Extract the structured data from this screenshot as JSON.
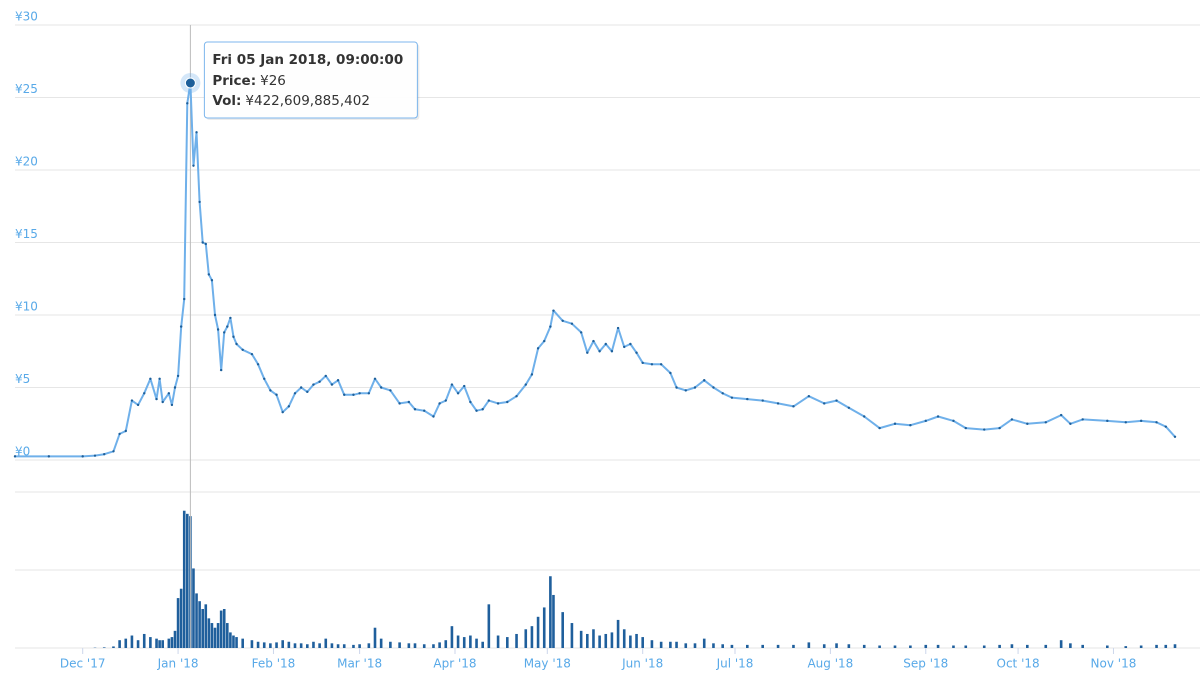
{
  "chart_data": {
    "type": "stock",
    "x": [
      "2017-11-09",
      "2017-11-20",
      "2017-12-01",
      "2017-12-05",
      "2017-12-08",
      "2017-12-11",
      "2017-12-13",
      "2017-12-15",
      "2017-12-17",
      "2017-12-19",
      "2017-12-21",
      "2017-12-23",
      "2017-12-25",
      "2017-12-26",
      "2017-12-27",
      "2017-12-29",
      "2017-12-30",
      "2017-12-31",
      "2018-01-01",
      "2018-01-02",
      "2018-01-03",
      "2018-01-04",
      "2018-01-05",
      "2018-01-06",
      "2018-01-07",
      "2018-01-08",
      "2018-01-09",
      "2018-01-10",
      "2018-01-11",
      "2018-01-12",
      "2018-01-13",
      "2018-01-14",
      "2018-01-15",
      "2018-01-16",
      "2018-01-17",
      "2018-01-18",
      "2018-01-19",
      "2018-01-20",
      "2018-01-22",
      "2018-01-25",
      "2018-01-27",
      "2018-01-29",
      "2018-01-31",
      "2018-02-02",
      "2018-02-04",
      "2018-02-06",
      "2018-02-08",
      "2018-02-10",
      "2018-02-12",
      "2018-02-14",
      "2018-02-16",
      "2018-02-18",
      "2018-02-20",
      "2018-02-22",
      "2018-02-24",
      "2018-02-27",
      "2018-03-01",
      "2018-03-04",
      "2018-03-06",
      "2018-03-08",
      "2018-03-11",
      "2018-03-14",
      "2018-03-17",
      "2018-03-19",
      "2018-03-22",
      "2018-03-25",
      "2018-03-27",
      "2018-03-29",
      "2018-03-31",
      "2018-04-02",
      "2018-04-04",
      "2018-04-06",
      "2018-04-08",
      "2018-04-10",
      "2018-04-12",
      "2018-04-15",
      "2018-04-18",
      "2018-04-21",
      "2018-04-24",
      "2018-04-26",
      "2018-04-28",
      "2018-04-30",
      "2018-05-02",
      "2018-05-03",
      "2018-05-06",
      "2018-05-09",
      "2018-05-12",
      "2018-05-14",
      "2018-05-16",
      "2018-05-18",
      "2018-05-20",
      "2018-05-22",
      "2018-05-24",
      "2018-05-26",
      "2018-05-28",
      "2018-05-30",
      "2018-06-01",
      "2018-06-04",
      "2018-06-07",
      "2018-06-10",
      "2018-06-12",
      "2018-06-15",
      "2018-06-18",
      "2018-06-21",
      "2018-06-24",
      "2018-06-27",
      "2018-06-30",
      "2018-07-05",
      "2018-07-10",
      "2018-07-15",
      "2018-07-20",
      "2018-07-25",
      "2018-07-30",
      "2018-08-03",
      "2018-08-07",
      "2018-08-12",
      "2018-08-17",
      "2018-08-22",
      "2018-08-27",
      "2018-09-01",
      "2018-09-05",
      "2018-09-10",
      "2018-09-14",
      "2018-09-20",
      "2018-09-25",
      "2018-09-29",
      "2018-10-04",
      "2018-10-10",
      "2018-10-15",
      "2018-10-18",
      "2018-10-22",
      "2018-10-30",
      "2018-11-05",
      "2018-11-10",
      "2018-11-15",
      "2018-11-18",
      "2018-11-21"
    ],
    "price": {
      "color": "#6fb0ea",
      "marker_color": "#1d5f9a",
      "values": [
        0.25,
        0.25,
        0.25,
        0.3,
        0.4,
        0.6,
        1.8,
        2.0,
        4.1,
        3.8,
        4.6,
        5.6,
        4.2,
        5.6,
        4.0,
        4.6,
        3.8,
        5.0,
        5.8,
        9.2,
        11.1,
        24.6,
        26.0,
        20.3,
        22.6,
        17.8,
        15.0,
        14.9,
        12.8,
        12.4,
        10.0,
        9.0,
        6.2,
        8.8,
        9.2,
        9.8,
        8.5,
        8.0,
        7.6,
        7.3,
        6.6,
        5.6,
        4.8,
        4.5,
        3.3,
        3.7,
        4.6,
        5.0,
        4.7,
        5.2,
        5.4,
        5.8,
        5.2,
        5.5,
        4.5,
        4.5,
        4.6,
        4.6,
        5.6,
        5.0,
        4.8,
        3.9,
        4.0,
        3.5,
        3.4,
        3.0,
        3.9,
        4.1,
        5.2,
        4.6,
        5.1,
        4.0,
        3.4,
        3.5,
        4.1,
        3.9,
        4.0,
        4.4,
        5.2,
        5.9,
        7.7,
        8.2,
        9.2,
        10.3,
        9.6,
        9.4,
        8.8,
        7.4,
        8.2,
        7.5,
        8.0,
        7.5,
        9.1,
        7.8,
        8.0,
        7.4,
        6.7,
        6.6,
        6.6,
        6.0,
        5.0,
        4.8,
        5.0,
        5.5,
        5.0,
        4.6,
        4.3,
        4.2,
        4.1,
        3.9,
        3.7,
        4.4,
        3.9,
        4.1,
        3.6,
        3.0,
        2.2,
        2.5,
        2.4,
        2.7,
        3.0,
        2.7,
        2.2,
        2.1,
        2.2,
        2.8,
        2.5,
        2.6,
        3.1,
        2.5,
        2.8,
        2.7,
        2.6,
        2.7,
        2.6,
        2.3,
        1.6
      ]
    },
    "volume": {
      "color": "#1f5f9c",
      "values": [
        0,
        0,
        0,
        1000000000.0,
        2000000000.0,
        5000000000.0,
        25000000000.0,
        30000000000.0,
        40000000000.0,
        25000000000.0,
        45000000000.0,
        35000000000.0,
        30000000000.0,
        25000000000.0,
        25000000000.0,
        30000000000.0,
        35000000000.0,
        55000000000.0,
        160000000000.0,
        190000000000.0,
        440000000000.0,
        430000000000.0,
        422609885402,
        255000000000.0,
        175000000000.0,
        150000000000.0,
        125000000000.0,
        140000000000.0,
        95000000000.0,
        80000000000.0,
        65000000000.0,
        80000000000.0,
        120000000000.0,
        125000000000.0,
        80000000000.0,
        50000000000.0,
        40000000000.0,
        35000000000.0,
        30000000000.0,
        25000000000.0,
        20000000000.0,
        18000000000.0,
        15000000000.0,
        18000000000.0,
        25000000000.0,
        20000000000.0,
        15000000000.0,
        15000000000.0,
        12000000000.0,
        20000000000.0,
        15000000000.0,
        30000000000.0,
        15000000000.0,
        12000000000.0,
        12000000000.0,
        10000000000.0,
        12000000000.0,
        15000000000.0,
        65000000000.0,
        30000000000.0,
        20000000000.0,
        18000000000.0,
        15000000000.0,
        15000000000.0,
        12000000000.0,
        12000000000.0,
        18000000000.0,
        25000000000.0,
        70000000000.0,
        40000000000.0,
        35000000000.0,
        40000000000.0,
        30000000000.0,
        20000000000.0,
        140000000000.0,
        40000000000.0,
        35000000000.0,
        45000000000.0,
        60000000000.0,
        70000000000.0,
        100000000000.0,
        130000000000.0,
        230000000000.0,
        170000000000.0,
        115000000000.0,
        80000000000.0,
        55000000000.0,
        45000000000.0,
        60000000000.0,
        40000000000.0,
        45000000000.0,
        50000000000.0,
        90000000000.0,
        60000000000.0,
        40000000000.0,
        45000000000.0,
        35000000000.0,
        25000000000.0,
        20000000000.0,
        20000000000.0,
        20000000000.0,
        15000000000.0,
        15000000000.0,
        30000000000.0,
        15000000000.0,
        12000000000.0,
        10000000000.0,
        10000000000.0,
        10000000000.0,
        10000000000.0,
        10000000000.0,
        18000000000.0,
        12000000000.0,
        15000000000.0,
        12000000000.0,
        10000000000.0,
        8000000000.0,
        8000000000.0,
        8000000000.0,
        10000000000.0,
        10000000000.0,
        8000000000.0,
        8000000000.0,
        8000000000.0,
        10000000000.0,
        12000000000.0,
        10000000000.0,
        10000000000.0,
        25000000000.0,
        15000000000.0,
        10000000000.0,
        8000000000.0,
        6000000000.0,
        8000000000.0,
        10000000000.0,
        10000000000.0,
        12000000000.0
      ]
    },
    "xlim": [
      "2017-11-09",
      "2018-11-21"
    ],
    "xticks": [
      {
        "value": "2017-12-01",
        "label": "Dec '17"
      },
      {
        "value": "2018-01-01",
        "label": "Jan '18"
      },
      {
        "value": "2018-02-01",
        "label": "Feb '18"
      },
      {
        "value": "2018-03-01",
        "label": "Mar '18"
      },
      {
        "value": "2018-04-01",
        "label": "Apr '18"
      },
      {
        "value": "2018-05-01",
        "label": "May '18"
      },
      {
        "value": "2018-06-01",
        "label": "Jun '18"
      },
      {
        "value": "2018-07-01",
        "label": "Jul '18"
      },
      {
        "value": "2018-08-01",
        "label": "Aug '18"
      },
      {
        "value": "2018-09-01",
        "label": "Sep '18"
      },
      {
        "value": "2018-10-01",
        "label": "Oct '18"
      },
      {
        "value": "2018-11-01",
        "label": "Nov '18"
      }
    ],
    "ylim": [
      0,
      30
    ],
    "yticks": [
      {
        "value": 0,
        "label": "¥0"
      },
      {
        "value": 5,
        "label": "¥5"
      },
      {
        "value": 10,
        "label": "¥10"
      },
      {
        "value": 15,
        "label": "¥15"
      },
      {
        "value": 20,
        "label": "¥20"
      },
      {
        "value": 25,
        "label": "¥25"
      },
      {
        "value": 30,
        "label": "¥30"
      }
    ],
    "y2lim": [
      0,
      500000000000
    ],
    "y2ticks": [
      0,
      250000000000,
      500000000000
    ],
    "grid": true,
    "tooltip": {
      "title": "Fri 05 Jan 2018, 09:00:00",
      "lines": [
        {
          "label": "Price:",
          "value": "¥26"
        },
        {
          "label": "Vol:",
          "value": "¥422,609,885,402"
        }
      ]
    }
  }
}
